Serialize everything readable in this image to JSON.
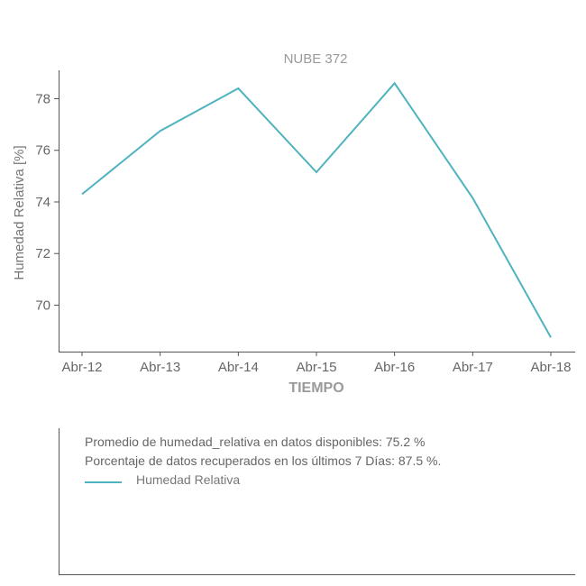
{
  "chart_data": {
    "type": "line",
    "title": "NUBE 372",
    "xlabel": "TIEMPO",
    "ylabel": "Humedad Relativa [%]",
    "categories": [
      "Abr-12",
      "Abr-13",
      "Abr-14",
      "Abr-15",
      "Abr-16",
      "Abr-17",
      "Abr-18"
    ],
    "series": [
      {
        "name": "Humedad Relativa",
        "values": [
          74.3,
          76.75,
          78.4,
          75.15,
          78.6,
          74.15,
          68.75
        ],
        "color": "#4fb3bf"
      }
    ],
    "yticks": [
      70,
      72,
      74,
      76,
      78
    ],
    "ylim": [
      68.2,
      79.1
    ],
    "grid": false,
    "legend": "bottom-left"
  },
  "info": {
    "promedio": "Promedio de humedad_relativa en datos disponibles: 75.2 %",
    "porcentaje": "Porcentaje de datos recuperados en los últimos 7 Días: 87.5 %."
  },
  "legend": {
    "label": "Humedad Relativa",
    "color": "#4fb3bf"
  }
}
